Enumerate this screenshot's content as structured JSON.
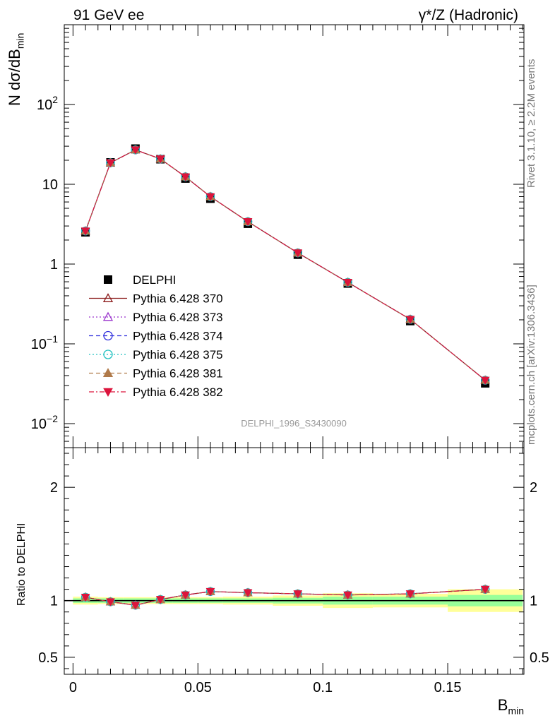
{
  "header": {
    "left": "91 GeV ee",
    "right": "γ*/Z (Hadronic)"
  },
  "side_text": {
    "top": "Rivet 3.1.10, ≥ 2.2M events",
    "bottom": "mcplots.cern.ch [arXiv:1306.3436]"
  },
  "analysis_label": "DELPHI_1996_S3430090",
  "chart_data": [
    {
      "type": "scatter",
      "panel": "main",
      "yscale": "log",
      "ylim": [
        0.005,
        1000
      ],
      "xlim": [
        -0.0035,
        0.1805
      ],
      "ylabel": "N dσ/dB",
      "ylabel_sub": "min",
      "yticks": [
        {
          "value": 0.01,
          "base": "10",
          "exp": "−2"
        },
        {
          "value": 0.1,
          "base": "10",
          "exp": "−1"
        },
        {
          "value": 1,
          "base": "1",
          "exp": ""
        },
        {
          "value": 10,
          "base": "10",
          "exp": ""
        },
        {
          "value": 100,
          "base": "10",
          "exp": "2"
        }
      ],
      "x": [
        0.005,
        0.015,
        0.025,
        0.035,
        0.045,
        0.055,
        0.07,
        0.09,
        0.11,
        0.135,
        0.165
      ],
      "data_series": {
        "name": "DELPHI",
        "color": "#000000",
        "values": [
          2.5,
          18.8,
          28.0,
          20.6,
          11.8,
          6.6,
          3.2,
          1.31,
          0.57,
          0.193,
          0.032
        ]
      },
      "series": [
        {
          "name": "Pythia 6.428 370",
          "color": "#8b1a1a",
          "marker": "triangle-open",
          "dash": "solid",
          "values": [
            2.6,
            18.6,
            27.0,
            20.8,
            12.4,
            7.0,
            3.4,
            1.38,
            0.59,
            0.203,
            0.035
          ]
        },
        {
          "name": "Pythia 6.428 373",
          "color": "#9932cc",
          "marker": "triangle-open",
          "dash": "dotted",
          "values": [
            2.6,
            18.6,
            27.0,
            20.8,
            12.4,
            7.0,
            3.4,
            1.38,
            0.59,
            0.203,
            0.035
          ]
        },
        {
          "name": "Pythia 6.428 374",
          "color": "#3333dd",
          "marker": "circle-open",
          "dash": "dashed",
          "values": [
            2.6,
            18.6,
            27.0,
            20.8,
            12.4,
            7.0,
            3.4,
            1.38,
            0.59,
            0.203,
            0.035
          ]
        },
        {
          "name": "Pythia 6.428 375",
          "color": "#20c0c0",
          "marker": "circle-open",
          "dash": "dotted",
          "values": [
            2.6,
            18.6,
            27.0,
            20.8,
            12.4,
            7.0,
            3.4,
            1.38,
            0.59,
            0.203,
            0.035
          ]
        },
        {
          "name": "Pythia 6.428 381",
          "color": "#b07a4a",
          "marker": "triangle-filled",
          "dash": "dashed",
          "values": [
            2.6,
            18.6,
            27.0,
            20.8,
            12.4,
            7.0,
            3.4,
            1.38,
            0.59,
            0.203,
            0.035
          ]
        },
        {
          "name": "Pythia 6.428 382",
          "color": "#dc143c",
          "marker": "triangle-down-filled",
          "dash": "dashdot",
          "values": [
            2.6,
            18.6,
            27.0,
            20.8,
            12.4,
            7.0,
            3.4,
            1.38,
            0.59,
            0.203,
            0.035
          ]
        }
      ],
      "legend_position": "center-left"
    },
    {
      "type": "line",
      "panel": "ratio",
      "ylim": [
        0.35,
        2.35
      ],
      "xlim": [
        -0.0035,
        0.1805
      ],
      "ylabel": "Ratio to DELPHI",
      "yticks": [
        "0.5",
        "1",
        "2"
      ],
      "xticks": [
        "0",
        "0.05",
        "0.1",
        "0.15"
      ],
      "xlabel": "B",
      "xlabel_sub": "min",
      "bin_edges": [
        0,
        0.01,
        0.02,
        0.03,
        0.04,
        0.05,
        0.06,
        0.08,
        0.1,
        0.12,
        0.15,
        0.18
      ],
      "band_inner": [
        0.02,
        0.02,
        0.02,
        0.02,
        0.02,
        0.02,
        0.02,
        0.025,
        0.035,
        0.035,
        0.05
      ],
      "band_outer": [
        0.035,
        0.03,
        0.03,
        0.03,
        0.03,
        0.03,
        0.035,
        0.045,
        0.065,
        0.06,
        0.1
      ],
      "ratio_values": [
        1.03,
        0.99,
        0.96,
        1.01,
        1.05,
        1.08,
        1.07,
        1.06,
        1.05,
        1.06,
        1.1
      ]
    }
  ]
}
